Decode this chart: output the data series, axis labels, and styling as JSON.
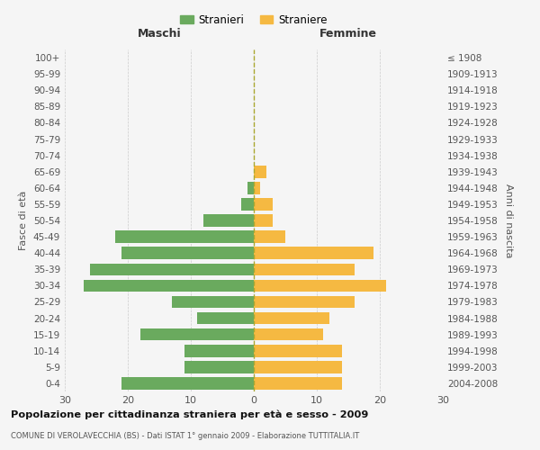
{
  "age_groups": [
    "0-4",
    "5-9",
    "10-14",
    "15-19",
    "20-24",
    "25-29",
    "30-34",
    "35-39",
    "40-44",
    "45-49",
    "50-54",
    "55-59",
    "60-64",
    "65-69",
    "70-74",
    "75-79",
    "80-84",
    "85-89",
    "90-94",
    "95-99",
    "100+"
  ],
  "birth_years": [
    "2004-2008",
    "1999-2003",
    "1994-1998",
    "1989-1993",
    "1984-1988",
    "1979-1983",
    "1974-1978",
    "1969-1973",
    "1964-1968",
    "1959-1963",
    "1954-1958",
    "1949-1953",
    "1944-1948",
    "1939-1943",
    "1934-1938",
    "1929-1933",
    "1924-1928",
    "1919-1923",
    "1914-1918",
    "1909-1913",
    "≤ 1908"
  ],
  "males": [
    21,
    11,
    11,
    18,
    9,
    13,
    27,
    26,
    21,
    22,
    8,
    2,
    1,
    0,
    0,
    0,
    0,
    0,
    0,
    0,
    0
  ],
  "females": [
    14,
    14,
    14,
    11,
    12,
    16,
    21,
    16,
    19,
    5,
    3,
    3,
    1,
    2,
    0,
    0,
    0,
    0,
    0,
    0,
    0
  ],
  "male_color": "#6aaa5e",
  "female_color": "#f5b942",
  "title": "Popolazione per cittadinanza straniera per età e sesso - 2009",
  "subtitle": "COMUNE DI VEROLAVECCHIA (BS) - Dati ISTAT 1° gennaio 2009 - Elaborazione TUTTITALIA.IT",
  "ylabel_left": "Fasce di età",
  "ylabel_right": "Anni di nascita",
  "xlabel_left": "Maschi",
  "xlabel_right": "Femmine",
  "xlim": 30,
  "legend_stranieri": "Stranieri",
  "legend_straniere": "Straniere",
  "background_color": "#f5f5f5"
}
